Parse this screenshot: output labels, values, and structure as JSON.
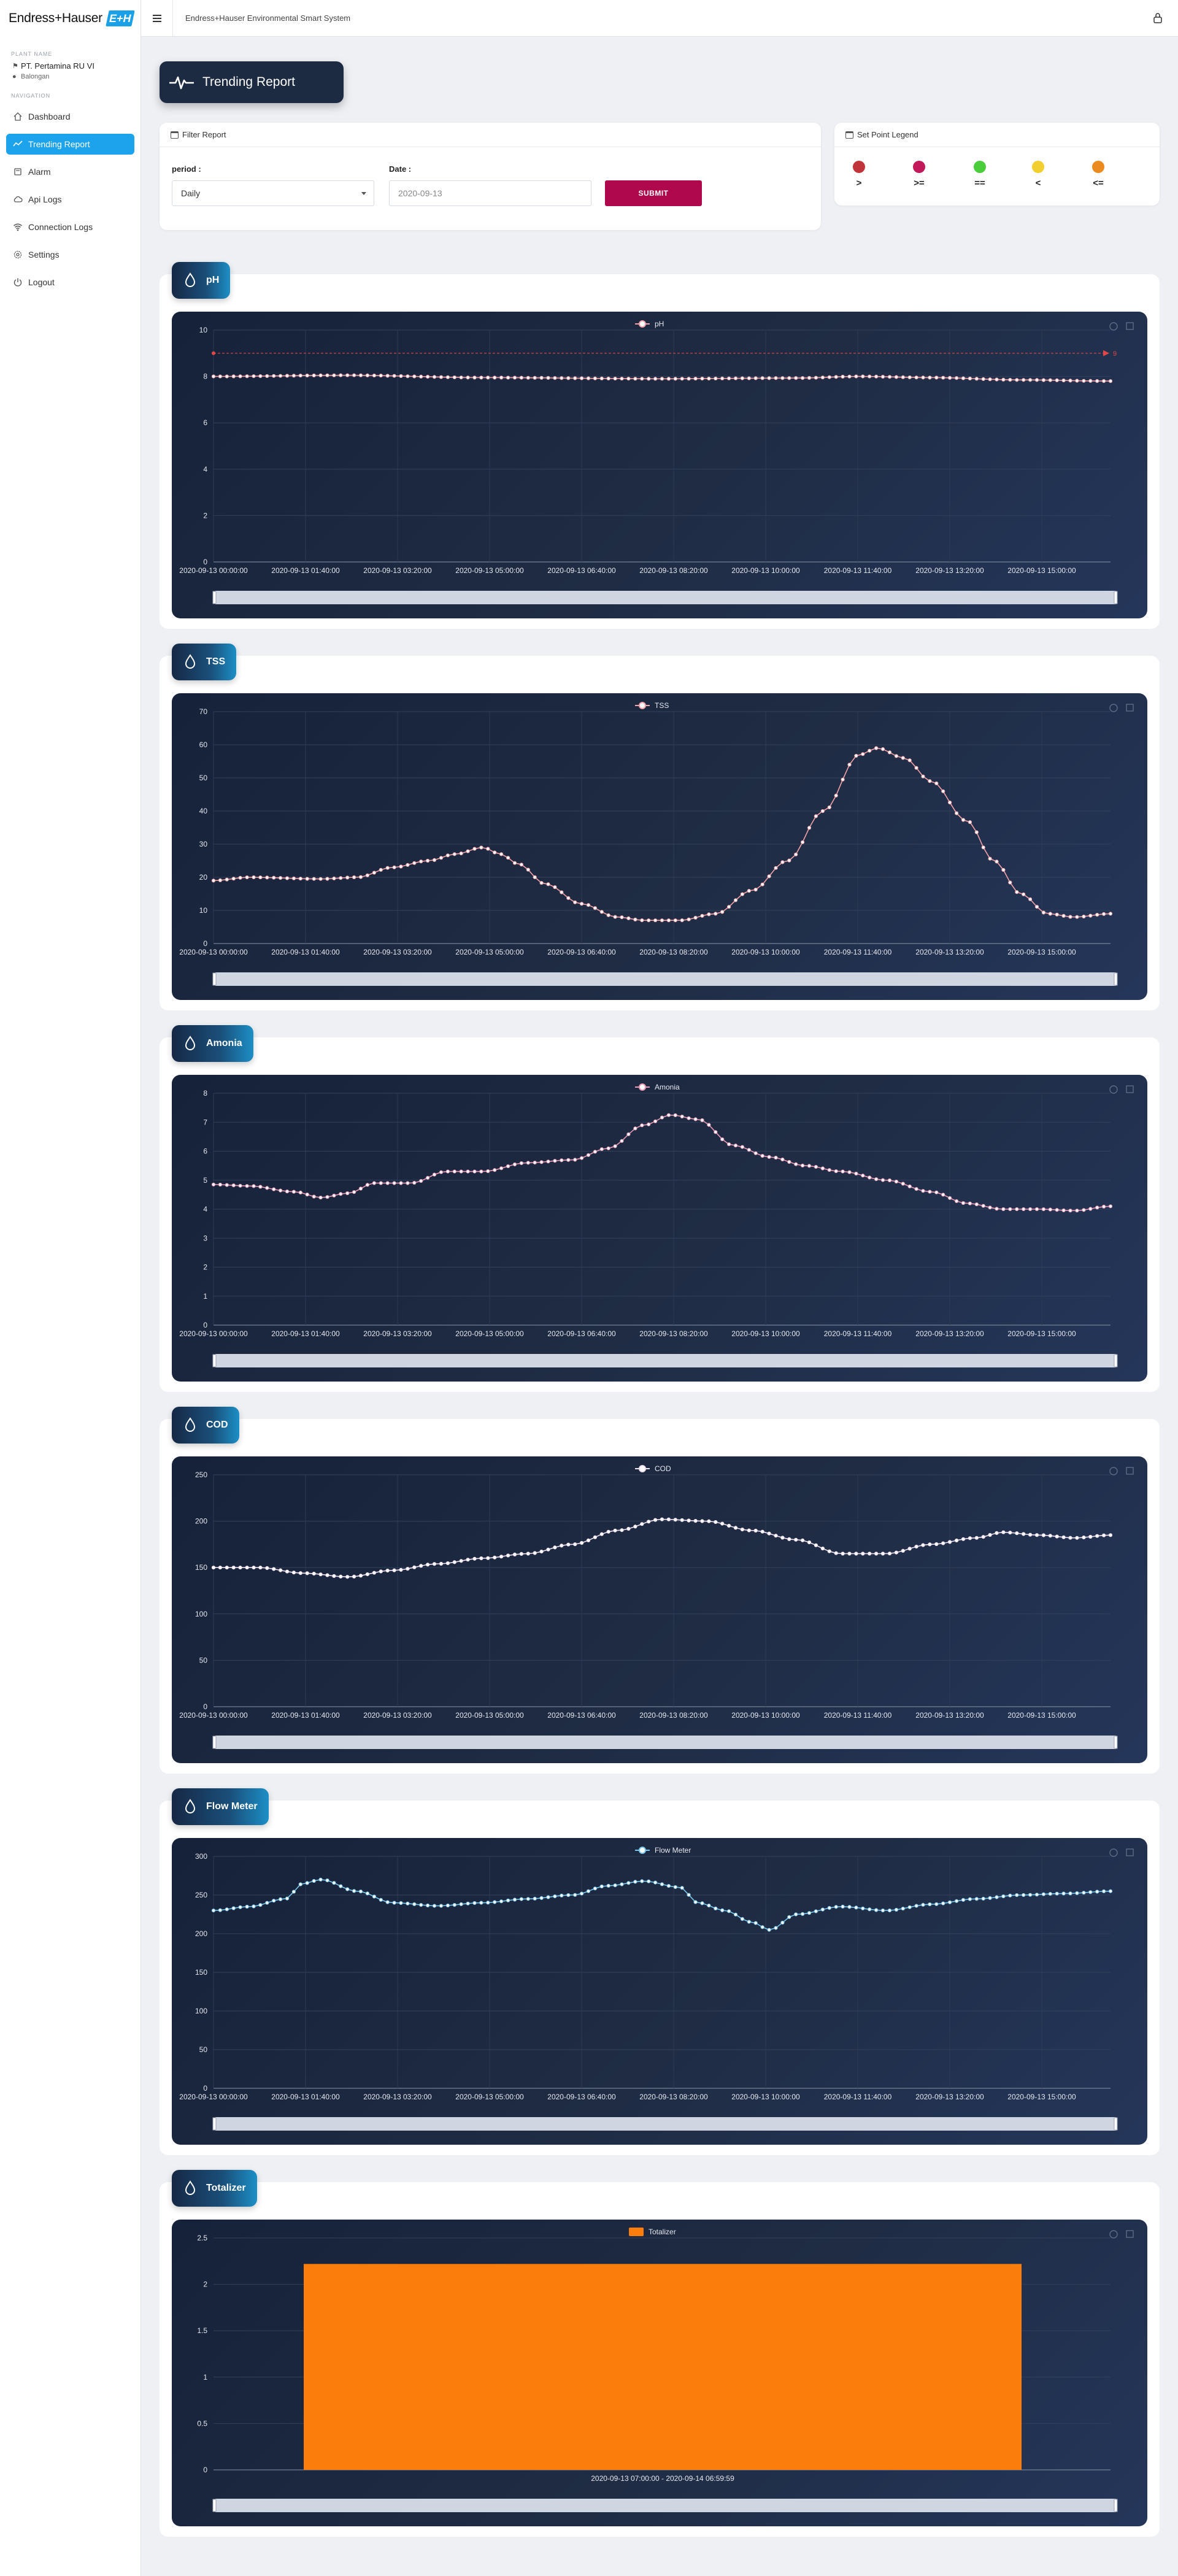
{
  "app": {
    "brand": "Endress+Hauser",
    "brand_badge": "E+H",
    "title": "Endress+Hauser Environmental Smart System"
  },
  "sidebar": {
    "plant_caption": "PLANT NAME",
    "plant_name": "PT. Pertamina RU VI",
    "plant_location": "Balongan",
    "nav_caption": "NAVIGATION",
    "items": [
      {
        "label": "Dashboard",
        "icon": "home-icon",
        "active": false
      },
      {
        "label": "Trending Report",
        "icon": "trend-icon",
        "active": true
      },
      {
        "label": "Alarm",
        "icon": "alarm-icon",
        "active": false
      },
      {
        "label": "Api Logs",
        "icon": "cloud-icon",
        "active": false
      },
      {
        "label": "Connection Logs",
        "icon": "wifi-icon",
        "active": false
      },
      {
        "label": "Settings",
        "icon": "gear-icon",
        "active": false
      },
      {
        "label": "Logout",
        "icon": "power-icon",
        "active": false
      }
    ]
  },
  "page": {
    "title": "Trending Report"
  },
  "filter": {
    "title": "Filter Report",
    "period_label": "period :",
    "period_value": "Daily",
    "date_label": "Date :",
    "date_value": "2020-09-13",
    "submit_label": "SUBMIT"
  },
  "legend": {
    "title": "Set Point Legend",
    "items": [
      {
        "symbol": ">",
        "color": "#c0343a"
      },
      {
        "symbol": ">=",
        "color": "#c2195a"
      },
      {
        "symbol": "==",
        "color": "#49cd3a"
      },
      {
        "symbol": "<",
        "color": "#f1cf2f"
      },
      {
        "symbol": "<=",
        "color": "#ea8a1f"
      }
    ]
  },
  "chart_data": [
    {
      "type": "line",
      "title": "pH",
      "series": [
        {
          "name": "pH",
          "color": "#f3a2a8"
        }
      ],
      "ylim": [
        0,
        10
      ],
      "yticks": [
        0,
        2,
        4,
        6,
        8,
        10
      ],
      "x_tick_labels": [
        "2020-09-13 00:00:00",
        "2020-09-13 01:40:00",
        "2020-09-13 03:20:00",
        "2020-09-13 05:00:00",
        "2020-09-13 06:40:00",
        "2020-09-13 08:20:00",
        "2020-09-13 10:00:00",
        "2020-09-13 11:40:00",
        "2020-09-13 13:20:00",
        "2020-09-13 15:00:00"
      ],
      "set_point": 9,
      "set_point_color": "#e04848",
      "set_point_label": "9",
      "points_count": 135,
      "control_points": [
        [
          0,
          8.0
        ],
        [
          0.15,
          8.05
        ],
        [
          0.3,
          7.95
        ],
        [
          0.5,
          7.9
        ],
        [
          0.65,
          7.93
        ],
        [
          0.72,
          8.0
        ],
        [
          0.8,
          7.95
        ],
        [
          0.9,
          7.85
        ],
        [
          1.0,
          7.8
        ]
      ]
    },
    {
      "type": "line",
      "title": "TSS",
      "series": [
        {
          "name": "TSS",
          "color": "#f3a2a8"
        }
      ],
      "ylim": [
        0,
        70
      ],
      "yticks": [
        0,
        10,
        20,
        30,
        40,
        50,
        60,
        70
      ],
      "x_tick_labels": [
        "2020-09-13 00:00:00",
        "2020-09-13 01:40:00",
        "2020-09-13 03:20:00",
        "2020-09-13 05:00:00",
        "2020-09-13 06:40:00",
        "2020-09-13 08:20:00",
        "2020-09-13 10:00:00",
        "2020-09-13 11:40:00",
        "2020-09-13 13:20:00",
        "2020-09-13 15:00:00"
      ],
      "points_count": 135,
      "control_points": [
        [
          0,
          19
        ],
        [
          0.04,
          20
        ],
        [
          0.12,
          19.5
        ],
        [
          0.16,
          20
        ],
        [
          0.2,
          23
        ],
        [
          0.24,
          25
        ],
        [
          0.27,
          27
        ],
        [
          0.3,
          29
        ],
        [
          0.32,
          27
        ],
        [
          0.34,
          24
        ],
        [
          0.37,
          18
        ],
        [
          0.41,
          12
        ],
        [
          0.45,
          8
        ],
        [
          0.48,
          7
        ],
        [
          0.52,
          7
        ],
        [
          0.56,
          9
        ],
        [
          0.6,
          16
        ],
        [
          0.64,
          25
        ],
        [
          0.68,
          40
        ],
        [
          0.72,
          57
        ],
        [
          0.74,
          59
        ],
        [
          0.77,
          56
        ],
        [
          0.8,
          49
        ],
        [
          0.84,
          37
        ],
        [
          0.87,
          25
        ],
        [
          0.9,
          15
        ],
        [
          0.93,
          9
        ],
        [
          0.96,
          8
        ],
        [
          1.0,
          9
        ]
      ]
    },
    {
      "type": "line",
      "title": "Amonia",
      "series": [
        {
          "name": "Amonia",
          "color": "#e89ab6"
        }
      ],
      "ylim": [
        0,
        8
      ],
      "yticks": [
        0,
        1,
        2,
        3,
        4,
        5,
        6,
        7,
        8
      ],
      "x_tick_labels": [
        "2020-09-13 00:00:00",
        "2020-09-13 01:40:00",
        "2020-09-13 03:20:00",
        "2020-09-13 05:00:00",
        "2020-09-13 06:40:00",
        "2020-09-13 08:20:00",
        "2020-09-13 10:00:00",
        "2020-09-13 11:40:00",
        "2020-09-13 13:20:00",
        "2020-09-13 15:00:00"
      ],
      "points_count": 135,
      "control_points": [
        [
          0,
          4.85
        ],
        [
          0.04,
          4.8
        ],
        [
          0.09,
          4.6
        ],
        [
          0.12,
          4.4
        ],
        [
          0.15,
          4.55
        ],
        [
          0.18,
          4.9
        ],
        [
          0.22,
          4.9
        ],
        [
          0.26,
          5.3
        ],
        [
          0.3,
          5.3
        ],
        [
          0.35,
          5.6
        ],
        [
          0.4,
          5.7
        ],
        [
          0.44,
          6.1
        ],
        [
          0.48,
          6.9
        ],
        [
          0.51,
          7.25
        ],
        [
          0.54,
          7.1
        ],
        [
          0.58,
          6.2
        ],
        [
          0.62,
          5.8
        ],
        [
          0.66,
          5.5
        ],
        [
          0.7,
          5.3
        ],
        [
          0.75,
          5.0
        ],
        [
          0.8,
          4.6
        ],
        [
          0.84,
          4.2
        ],
        [
          0.88,
          4.0
        ],
        [
          0.92,
          4.0
        ],
        [
          0.96,
          3.95
        ],
        [
          1.0,
          4.1
        ]
      ]
    },
    {
      "type": "line",
      "title": "COD",
      "series": [
        {
          "name": "COD",
          "color": "#f0e0ee"
        }
      ],
      "ylim": [
        0,
        250
      ],
      "yticks": [
        0,
        50,
        100,
        150,
        200,
        250
      ],
      "x_tick_labels": [
        "2020-09-13 00:00:00",
        "2020-09-13 01:40:00",
        "2020-09-13 03:20:00",
        "2020-09-13 05:00:00",
        "2020-09-13 06:40:00",
        "2020-09-13 08:20:00",
        "2020-09-13 10:00:00",
        "2020-09-13 11:40:00",
        "2020-09-13 13:20:00",
        "2020-09-13 15:00:00"
      ],
      "points_count": 135,
      "control_points": [
        [
          0,
          150
        ],
        [
          0.05,
          150
        ],
        [
          0.1,
          144
        ],
        [
          0.15,
          140
        ],
        [
          0.2,
          147
        ],
        [
          0.25,
          154
        ],
        [
          0.3,
          160
        ],
        [
          0.35,
          165
        ],
        [
          0.4,
          175
        ],
        [
          0.45,
          190
        ],
        [
          0.5,
          202
        ],
        [
          0.55,
          200
        ],
        [
          0.6,
          190
        ],
        [
          0.65,
          180
        ],
        [
          0.7,
          165
        ],
        [
          0.75,
          165
        ],
        [
          0.8,
          175
        ],
        [
          0.85,
          182
        ],
        [
          0.88,
          188
        ],
        [
          0.92,
          185
        ],
        [
          0.96,
          182
        ],
        [
          1.0,
          185
        ]
      ]
    },
    {
      "type": "line",
      "title": "Flow Meter",
      "series": [
        {
          "name": "Flow Meter",
          "color": "#7cc8ec"
        }
      ],
      "ylim": [
        0,
        300
      ],
      "yticks": [
        0,
        50,
        100,
        150,
        200,
        250,
        300
      ],
      "x_tick_labels": [
        "2020-09-13 00:00:00",
        "2020-09-13 01:40:00",
        "2020-09-13 03:20:00",
        "2020-09-13 05:00:00",
        "2020-09-13 06:40:00",
        "2020-09-13 08:20:00",
        "2020-09-13 10:00:00",
        "2020-09-13 11:40:00",
        "2020-09-13 13:20:00",
        "2020-09-13 15:00:00"
      ],
      "points_count": 135,
      "control_points": [
        [
          0,
          230
        ],
        [
          0.04,
          235
        ],
        [
          0.08,
          245
        ],
        [
          0.1,
          265
        ],
        [
          0.12,
          270
        ],
        [
          0.16,
          255
        ],
        [
          0.2,
          240
        ],
        [
          0.25,
          236
        ],
        [
          0.3,
          240
        ],
        [
          0.35,
          245
        ],
        [
          0.4,
          250
        ],
        [
          0.44,
          262
        ],
        [
          0.48,
          268
        ],
        [
          0.52,
          260
        ],
        [
          0.54,
          240
        ],
        [
          0.57,
          230
        ],
        [
          0.6,
          215
        ],
        [
          0.62,
          205
        ],
        [
          0.65,
          225
        ],
        [
          0.7,
          235
        ],
        [
          0.75,
          230
        ],
        [
          0.8,
          238
        ],
        [
          0.85,
          245
        ],
        [
          0.9,
          250
        ],
        [
          0.95,
          252
        ],
        [
          1.0,
          255
        ]
      ]
    },
    {
      "type": "bar",
      "title": "Totalizer",
      "series": [
        {
          "name": "Totalizer",
          "color": "#fb7d0c",
          "values": [
            2.22
          ]
        }
      ],
      "categories": [
        "2020-09-13 07:00:00 - 2020-09-14 06:59:59"
      ],
      "ylim": [
        0,
        2.5
      ],
      "yticks": [
        0,
        0.5,
        1,
        1.5,
        2,
        2.5
      ]
    }
  ]
}
